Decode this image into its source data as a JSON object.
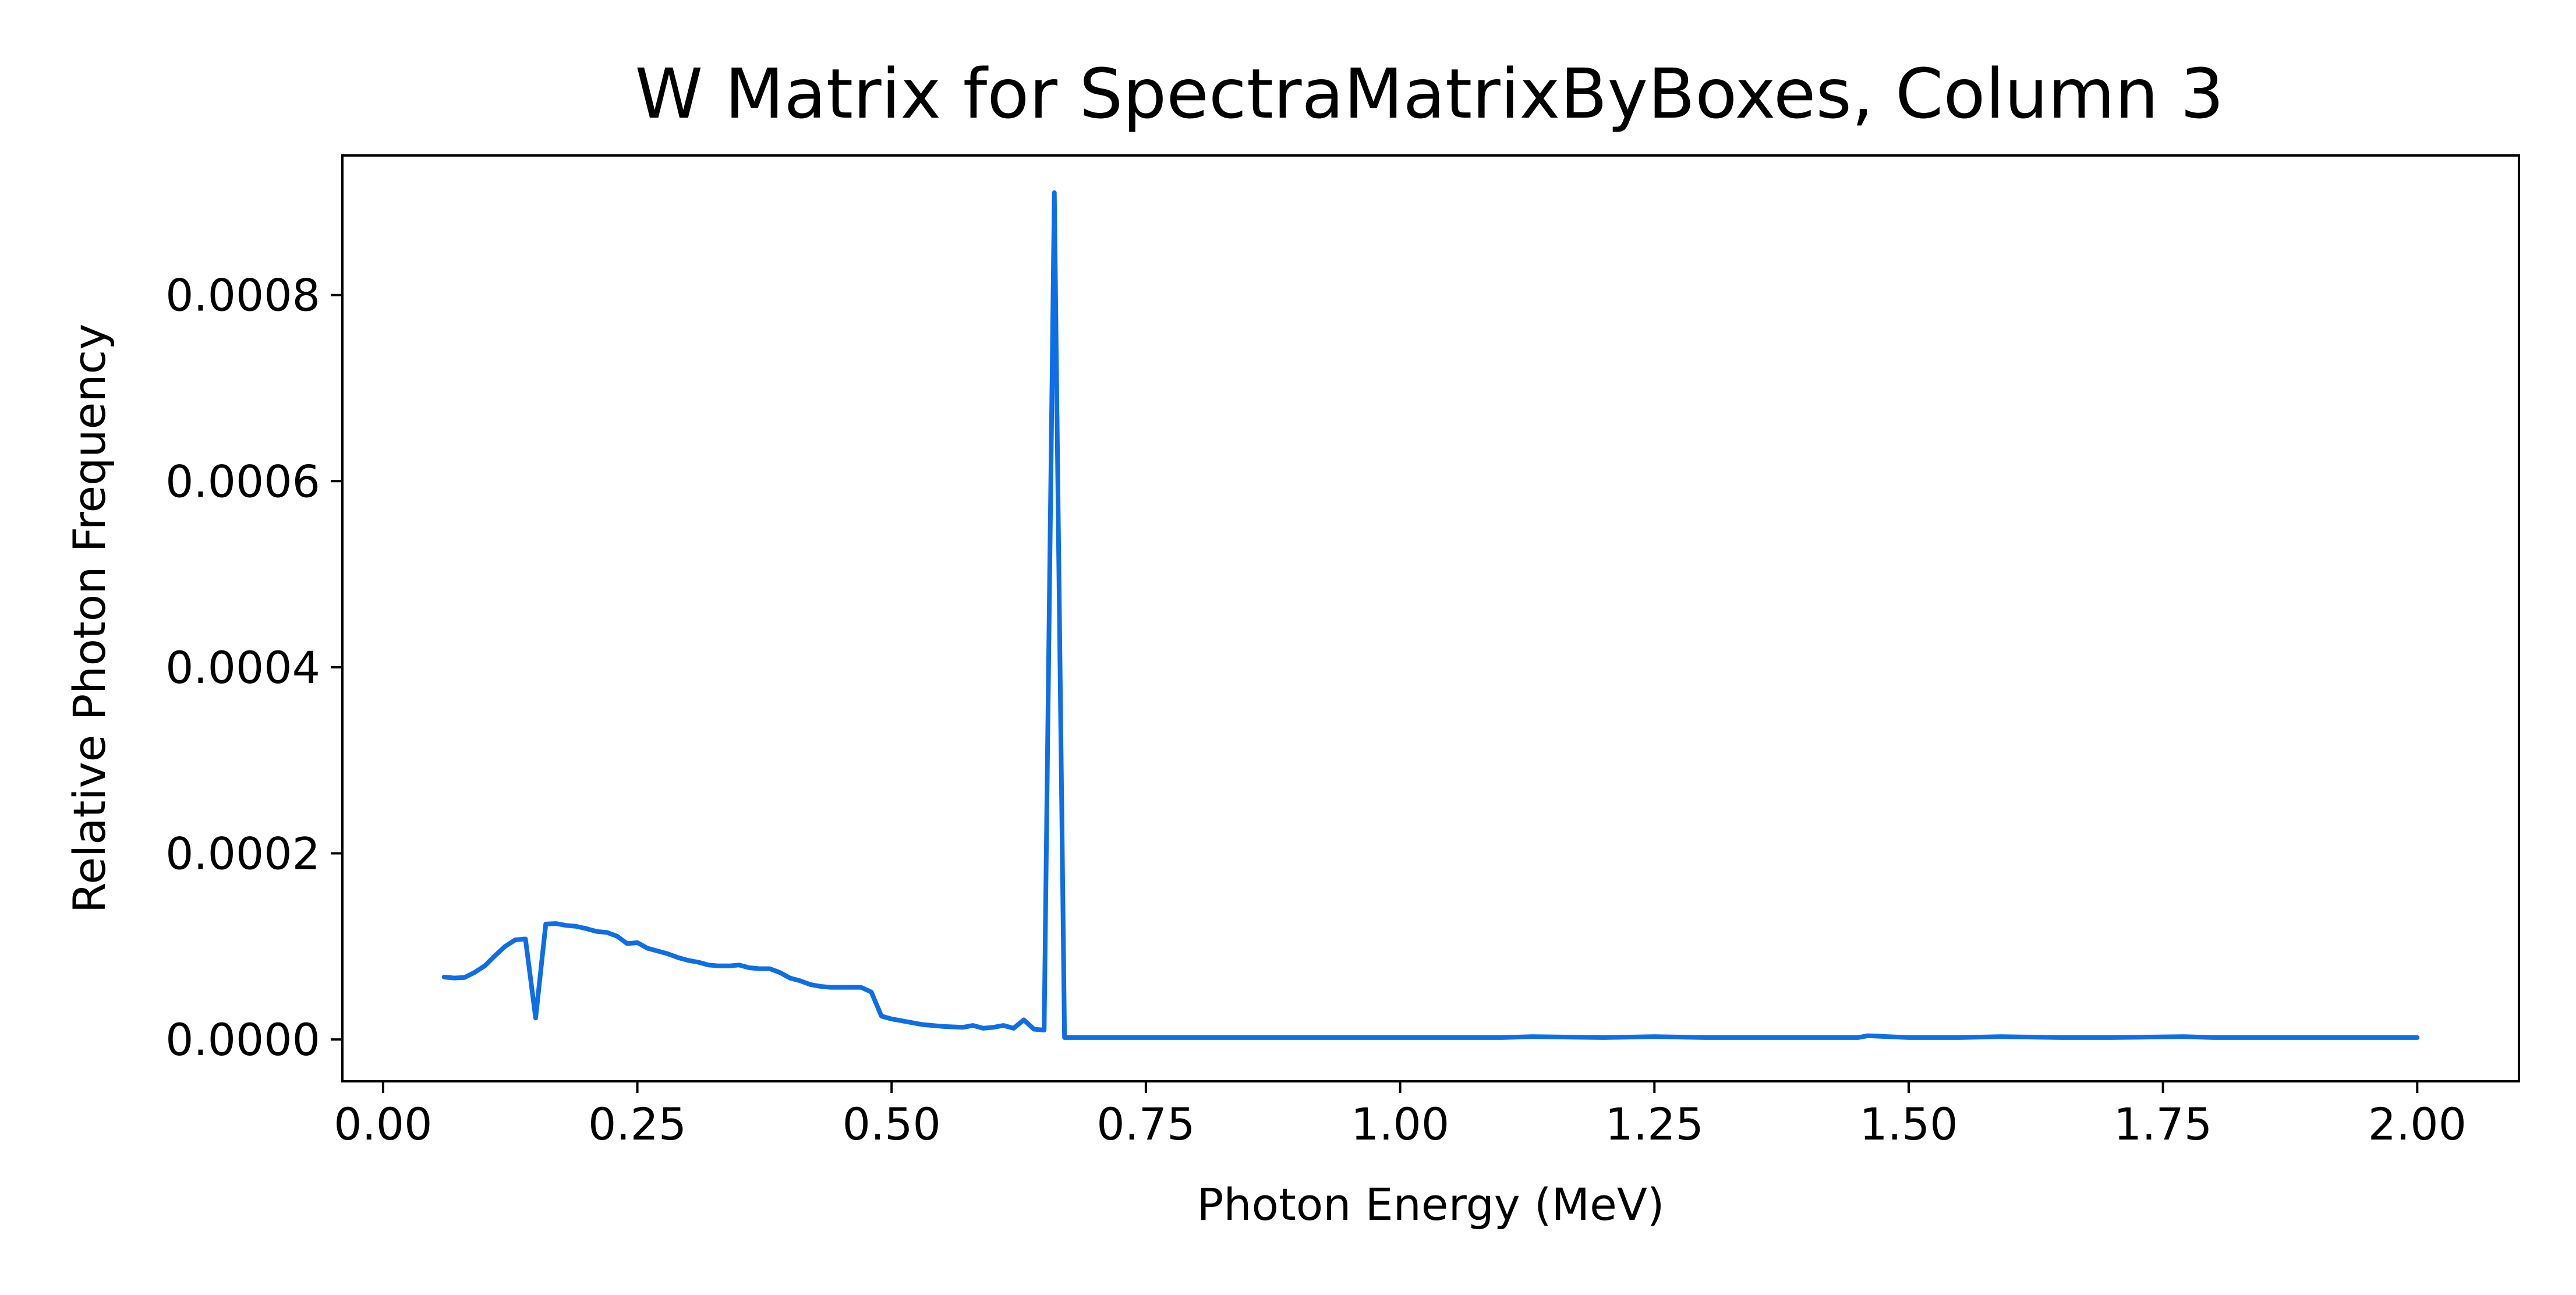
{
  "chart_data": {
    "type": "line",
    "title": "W Matrix for SpectraMatrixByBoxes, Column 3",
    "xlabel": "Photon Energy (MeV)",
    "ylabel": "Relative Photon Frequency",
    "xlim": [
      -0.04,
      2.1
    ],
    "ylim": [
      -4.5e-05,
      0.00095
    ],
    "xticks": [
      0.0,
      0.25,
      0.5,
      0.75,
      1.0,
      1.25,
      1.5,
      1.75,
      2.0
    ],
    "xtick_labels": [
      "0.00",
      "0.25",
      "0.50",
      "0.75",
      "1.00",
      "1.25",
      "1.50",
      "1.75",
      "2.00"
    ],
    "yticks": [
      0.0,
      0.0002,
      0.0004,
      0.0006,
      0.0008
    ],
    "ytick_labels": [
      "0.0000",
      "0.0002",
      "0.0004",
      "0.0006",
      "0.0008"
    ],
    "grid": false,
    "legend": false,
    "line_color": "#0d6ee8",
    "series": [
      {
        "x": [
          0.06,
          0.07,
          0.08,
          0.09,
          0.1,
          0.11,
          0.12,
          0.13,
          0.14,
          0.15,
          0.16,
          0.17,
          0.18,
          0.19,
          0.2,
          0.21,
          0.22,
          0.23,
          0.24,
          0.25,
          0.26,
          0.27,
          0.28,
          0.29,
          0.3,
          0.31,
          0.32,
          0.33,
          0.34,
          0.35,
          0.36,
          0.37,
          0.38,
          0.39,
          0.4,
          0.41,
          0.42,
          0.43,
          0.44,
          0.45,
          0.46,
          0.47,
          0.48,
          0.49,
          0.5,
          0.51,
          0.52,
          0.53,
          0.54,
          0.55,
          0.56,
          0.57,
          0.58,
          0.59,
          0.6,
          0.61,
          0.62,
          0.63,
          0.64,
          0.65,
          0.66,
          0.67,
          0.68,
          0.7,
          0.75,
          0.8,
          0.9,
          1.0,
          1.1,
          1.13,
          1.2,
          1.25,
          1.3,
          1.35,
          1.4,
          1.45,
          1.46,
          1.5,
          1.55,
          1.59,
          1.65,
          1.7,
          1.77,
          1.8,
          1.9,
          2.0
        ],
        "y": [
          6.7e-05,
          6.6e-05,
          6.65e-05,
          7.2e-05,
          7.9e-05,
          9e-05,
          0.0001,
          0.000107,
          0.000108,
          2.3e-05,
          0.000124,
          0.0001245,
          0.0001225,
          0.0001215,
          0.000119,
          0.000116,
          0.000115,
          0.000111,
          0.000103,
          0.000104,
          9.8e-05,
          9.5e-05,
          9.2e-05,
          8.8e-05,
          8.5e-05,
          8.3e-05,
          8e-05,
          7.9e-05,
          7.9e-05,
          8e-05,
          7.7e-05,
          7.6e-05,
          7.6e-05,
          7.2e-05,
          6.6e-05,
          6.3e-05,
          5.9e-05,
          5.7e-05,
          5.6e-05,
          5.6e-05,
          5.6e-05,
          5.6e-05,
          5.1e-05,
          2.5e-05,
          2.2e-05,
          2e-05,
          1.8e-05,
          1.6e-05,
          1.5e-05,
          1.4e-05,
          1.35e-05,
          1.3e-05,
          1.5e-05,
          1.2e-05,
          1.3e-05,
          1.5e-05,
          1.2e-05,
          2.1e-05,
          1.1e-05,
          1e-05,
          0.00091,
          2e-06,
          2e-06,
          2e-06,
          2e-06,
          2e-06,
          2e-06,
          2e-06,
          2e-06,
          3e-06,
          2e-06,
          3e-06,
          2e-06,
          2e-06,
          2e-06,
          2e-06,
          4e-06,
          2e-06,
          2e-06,
          3e-06,
          2e-06,
          2e-06,
          3e-06,
          2e-06,
          2e-06,
          2e-06
        ]
      }
    ]
  }
}
